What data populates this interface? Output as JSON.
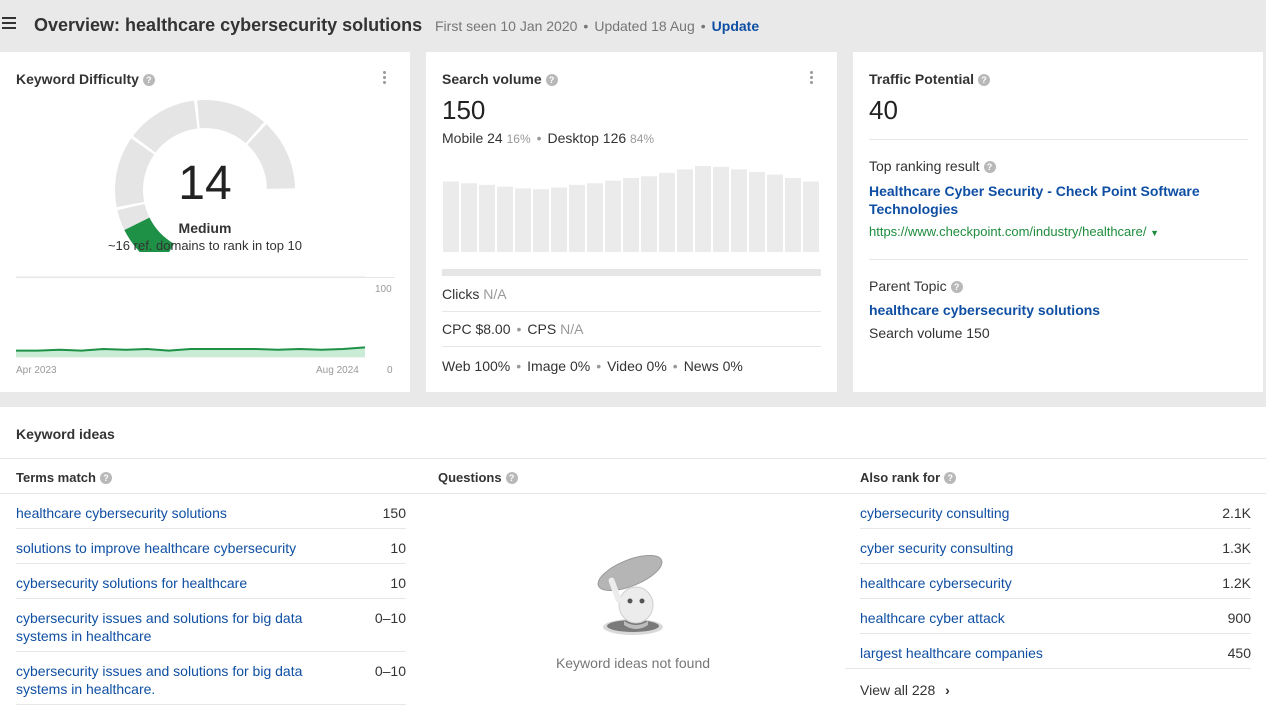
{
  "header": {
    "title": "Overview: healthcare cybersecurity solutions",
    "first_seen": "First seen 10 Jan 2020",
    "updated": "Updated 18 Aug",
    "update_link": "Update"
  },
  "keyword_difficulty": {
    "title": "Keyword Difficulty",
    "value": "14",
    "level": "Medium",
    "description": "~16 ref. domains to rank in top 10",
    "chart": {
      "y_max_label": "100",
      "y_min_label": "0",
      "x_start_label": "Apr 2023",
      "x_end_label": "Aug 2024",
      "values": [
        8,
        8,
        9,
        8,
        10,
        9,
        10,
        8,
        10,
        10,
        10,
        10,
        9,
        10,
        9,
        10,
        12
      ]
    },
    "color": "#1f9146"
  },
  "search_volume": {
    "title": "Search volume",
    "value": "150",
    "mobile_label": "Mobile 24",
    "mobile_pct": "16%",
    "desktop_label": "Desktop 126",
    "desktop_pct": "84%",
    "bars": [
      82,
      80,
      78,
      76,
      74,
      73,
      75,
      78,
      80,
      83,
      86,
      88,
      92,
      96,
      100,
      99,
      96,
      93,
      90,
      86,
      82
    ],
    "clicks_label": "Clicks",
    "clicks_value": "N/A",
    "cpc_label": "CPC $8.00",
    "cps_label": "CPS",
    "cps_value": "N/A",
    "web": "Web 100%",
    "image": "Image 0%",
    "video": "Video 0%",
    "news": "News 0%"
  },
  "traffic_potential": {
    "title": "Traffic Potential",
    "value": "40",
    "top_ranking_label": "Top ranking result",
    "top_ranking_title": "Healthcare Cyber Security - Check Point Software Technologies",
    "top_ranking_url": "https://www.checkpoint.com/industry/healthcare/",
    "parent_topic_label": "Parent Topic",
    "parent_topic": "healthcare cybersecurity solutions",
    "parent_volume": "Search volume 150"
  },
  "keyword_ideas": {
    "title": "Keyword ideas",
    "terms_match": {
      "heading": "Terms match",
      "rows": [
        {
          "keyword": "healthcare cybersecurity solutions",
          "volume": "150"
        },
        {
          "keyword": "solutions to improve healthcare cybersecurity",
          "volume": "10"
        },
        {
          "keyword": "cybersecurity solutions for healthcare",
          "volume": "10"
        },
        {
          "keyword": "cybersecurity issues and solutions for big data systems in healthcare",
          "volume": "0–10"
        },
        {
          "keyword": "cybersecurity issues and solutions for big data systems in healthcare.",
          "volume": "0–10"
        }
      ]
    },
    "questions": {
      "heading": "Questions",
      "empty_text": "Keyword ideas not found"
    },
    "also_rank_for": {
      "heading": "Also rank for",
      "rows": [
        {
          "keyword": "cybersecurity consulting",
          "volume": "2.1K"
        },
        {
          "keyword": "cyber security consulting",
          "volume": "1.3K"
        },
        {
          "keyword": "healthcare cybersecurity",
          "volume": "1.2K"
        },
        {
          "keyword": "healthcare cyber attack",
          "volume": "900"
        },
        {
          "keyword": "largest healthcare companies",
          "volume": "450"
        }
      ],
      "view_all": "View all 228"
    }
  }
}
